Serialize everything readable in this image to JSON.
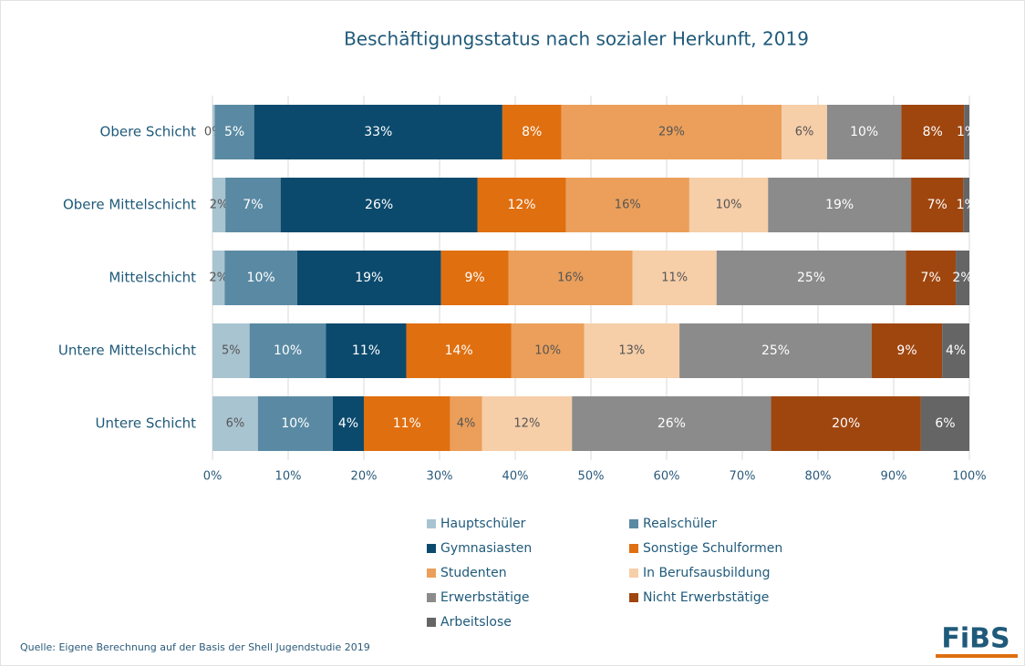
{
  "chart_data": {
    "type": "stacked_barh",
    "title": "Beschäftigungsstatus nach sozialer Herkunft, 2019",
    "categories": [
      "Obere Schicht",
      "Obere Mittelschicht",
      "Mittelschicht",
      "Untere Mittelschicht",
      "Untere Schicht"
    ],
    "series": [
      {
        "name": "Hauptschüler",
        "color": "#a9c4d1",
        "values": [
          0.3,
          1.7,
          1.6,
          4.9,
          6.0
        ],
        "value_labels": [
          "0%",
          "2%",
          "2%",
          "5%",
          "6%"
        ]
      },
      {
        "name": "Realschüler",
        "color": "#5a8aa3",
        "values": [
          5.2,
          7.3,
          9.6,
          10.1,
          9.9
        ],
        "value_labels": [
          "5%",
          "7%",
          "10%",
          "10%",
          "10%"
        ]
      },
      {
        "name": "Gymnasiasten",
        "color": "#0b4a6d",
        "values": [
          32.8,
          26.0,
          19.0,
          10.6,
          4.1
        ],
        "value_labels": [
          "33%",
          "26%",
          "19%",
          "11%",
          "4%"
        ]
      },
      {
        "name": "Sonstige Schulformen",
        "color": "#e06f10",
        "values": [
          7.8,
          11.7,
          8.9,
          13.9,
          11.4
        ],
        "value_labels": [
          "8%",
          "12%",
          "9%",
          "14%",
          "11%"
        ]
      },
      {
        "name": "Studenten",
        "color": "#eb9f5a",
        "values": [
          29.1,
          16.3,
          16.4,
          9.6,
          4.2
        ],
        "value_labels": [
          "29%",
          "16%",
          "16%",
          "10%",
          "4%"
        ]
      },
      {
        "name": "In Berufsausbildung",
        "color": "#f6cea8",
        "values": [
          6.0,
          10.4,
          11.1,
          12.6,
          11.9
        ],
        "value_labels": [
          "6%",
          "10%",
          "11%",
          "13%",
          "12%"
        ]
      },
      {
        "name": "Erwerbstätige",
        "color": "#8b8b8b",
        "values": [
          9.8,
          18.9,
          25.0,
          25.4,
          26.3
        ],
        "value_labels": [
          "10%",
          "19%",
          "25%",
          "25%",
          "26%"
        ]
      },
      {
        "name": "Nicht Erwerbstätige",
        "color": "#9f460f",
        "values": [
          8.3,
          6.9,
          6.6,
          9.3,
          19.8
        ],
        "value_labels": [
          "8%",
          "7%",
          "7%",
          "9%",
          "20%"
        ]
      },
      {
        "name": "Arbeitslose",
        "color": "#656565",
        "values": [
          0.7,
          0.8,
          1.8,
          3.6,
          6.4
        ],
        "value_labels": [
          "1%",
          "1%",
          "2%",
          "4%",
          "6%"
        ]
      }
    ],
    "xlim": [
      0,
      100
    ],
    "xticks": [
      {
        "value": 0,
        "label": "0%"
      },
      {
        "value": 10,
        "label": "10%"
      },
      {
        "value": 20,
        "label": "20%"
      },
      {
        "value": 30,
        "label": "30%"
      },
      {
        "value": 40,
        "label": "40%"
      },
      {
        "value": 50,
        "label": "50%"
      },
      {
        "value": 60,
        "label": "60%"
      },
      {
        "value": 70,
        "label": "70%"
      },
      {
        "value": 80,
        "label": "80%"
      },
      {
        "value": 90,
        "label": "90%"
      },
      {
        "value": 100,
        "label": "100%"
      }
    ],
    "grid": true,
    "legend": "bottom",
    "source": "Quelle: Eigene Berechnung auf der Basis der Shell Jugendstudie 2019",
    "logo": "FiBS"
  }
}
